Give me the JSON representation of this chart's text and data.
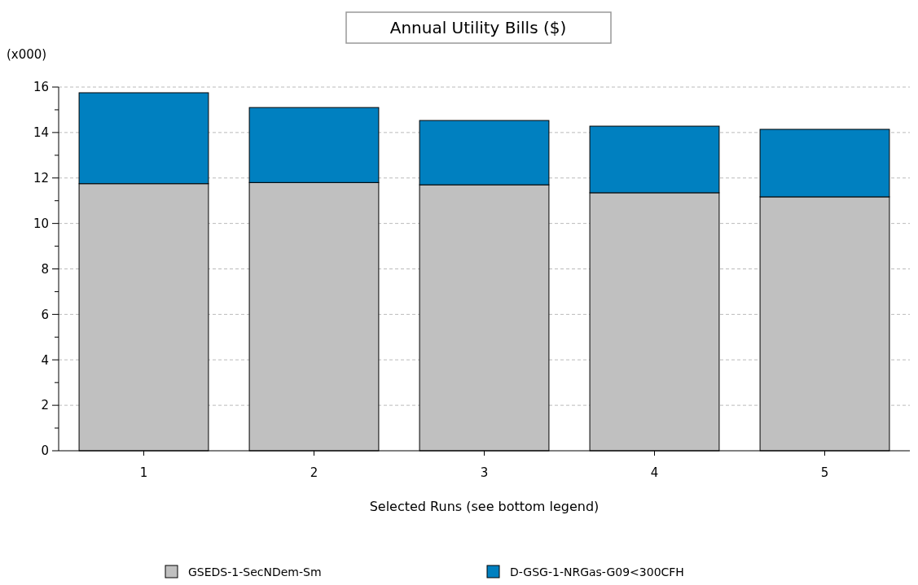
{
  "chart_data": {
    "type": "bar",
    "title": "Annual Utility Bills ($)",
    "ylabel": "(x000)",
    "xlabel": "Selected Runs (see bottom legend)",
    "categories": [
      "1",
      "2",
      "3",
      "4",
      "5"
    ],
    "stacked": true,
    "series": [
      {
        "name": "GSEDS-1-SecNDem-Sm",
        "color": "#c0c0c0",
        "values": [
          11.75,
          11.8,
          11.7,
          11.35,
          11.17
        ]
      },
      {
        "name": "D-GSG-1-NRGas-G09<300CFH",
        "color": "#0080c0",
        "values": [
          4.0,
          3.3,
          2.83,
          2.93,
          2.97
        ]
      }
    ],
    "ylim": [
      0,
      16
    ],
    "yticks": [
      0,
      {
        "value": 1,
        "label": null
      },
      2,
      {
        "value": 3,
        "label": null
      },
      4,
      {
        "value": 5,
        "label": null
      },
      6,
      {
        "value": 7,
        "label": null
      },
      8,
      {
        "value": 9,
        "label": null
      },
      10,
      {
        "value": 11,
        "label": null
      },
      12,
      {
        "value": 13,
        "label": null
      },
      14,
      {
        "value": 15,
        "label": null
      },
      16
    ],
    "grid": "y",
    "legend": "bottom"
  }
}
